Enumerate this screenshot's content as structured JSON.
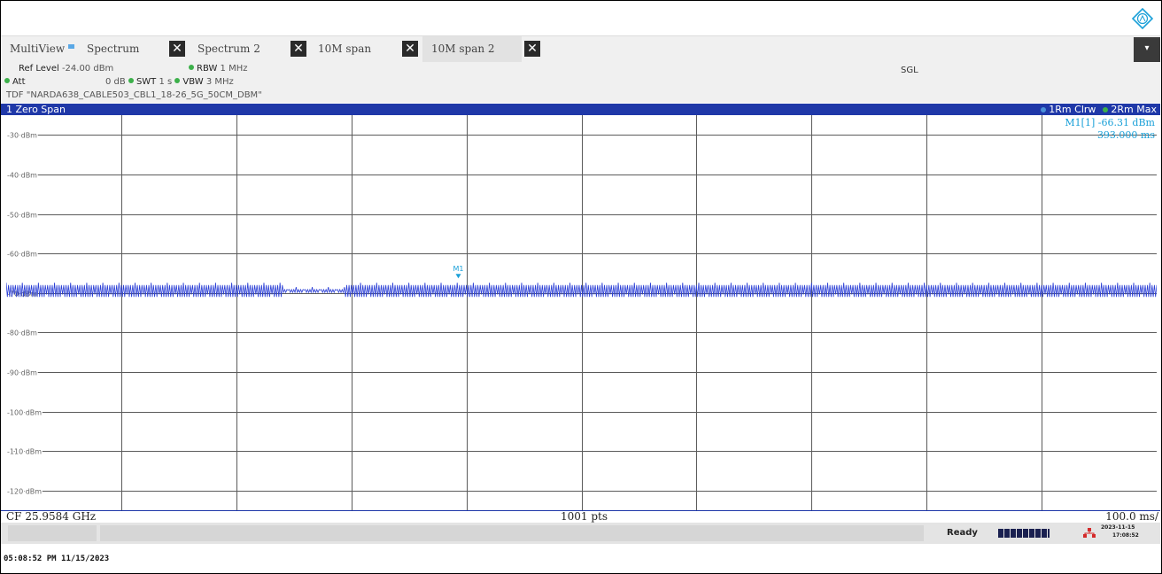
{
  "tabs": {
    "multiview": "MultiView",
    "items": [
      "Spectrum",
      "Spectrum 2",
      "10M span",
      "10M span 2"
    ],
    "close_glyph": "✕"
  },
  "settings": {
    "ref_level_label": "Ref Level",
    "ref_level_value": "-24.00 dBm",
    "rbw_label": "RBW",
    "rbw_value": "1 MHz",
    "att_label": "Att",
    "att_value": "0 dB",
    "swt_label": "SWT",
    "swt_value": "1 s",
    "vbw_label": "VBW",
    "vbw_value": "3 MHz",
    "mode": "SGL",
    "tdf": "TDF \"NARDA638_CABLE503_CBL1_18-26_5G_50CM_DBM\""
  },
  "window": {
    "title": "1 Zero Span",
    "trace1": "1Rm Clrw",
    "trace2": "2Rm Max"
  },
  "marker": {
    "readout_label": "M1[1]",
    "readout_value": "-66.31 dBm",
    "readout_time": "393.000 ms",
    "label": "M1"
  },
  "chart_data": {
    "type": "line",
    "y_ticks": [
      "-30 dBm",
      "-40 dBm",
      "-50 dBm",
      "-60 dBm",
      "-70 dBm",
      "-80 dBm",
      "-90 dBm",
      "-100 dBm",
      "-110 dBm",
      "-120 dBm"
    ],
    "ylim": [
      -125,
      -25
    ],
    "xlim": [
      0,
      1000
    ],
    "x_unit": "ms",
    "trace_color": "#2b3fd6",
    "trace_level_dbm": -69.5,
    "trace_ripple_db": 1.5,
    "marker_x_ms": 393,
    "marker_y_dbm": -66.31
  },
  "footer": {
    "cf": "CF 25.9584 GHz",
    "pts": "1001 pts",
    "span": "100.0 ms/"
  },
  "status": {
    "ready": "Ready",
    "date": "2023-11-15",
    "time": "17:08:52"
  },
  "timestamp": "05:08:52 PM  11/15/2023"
}
